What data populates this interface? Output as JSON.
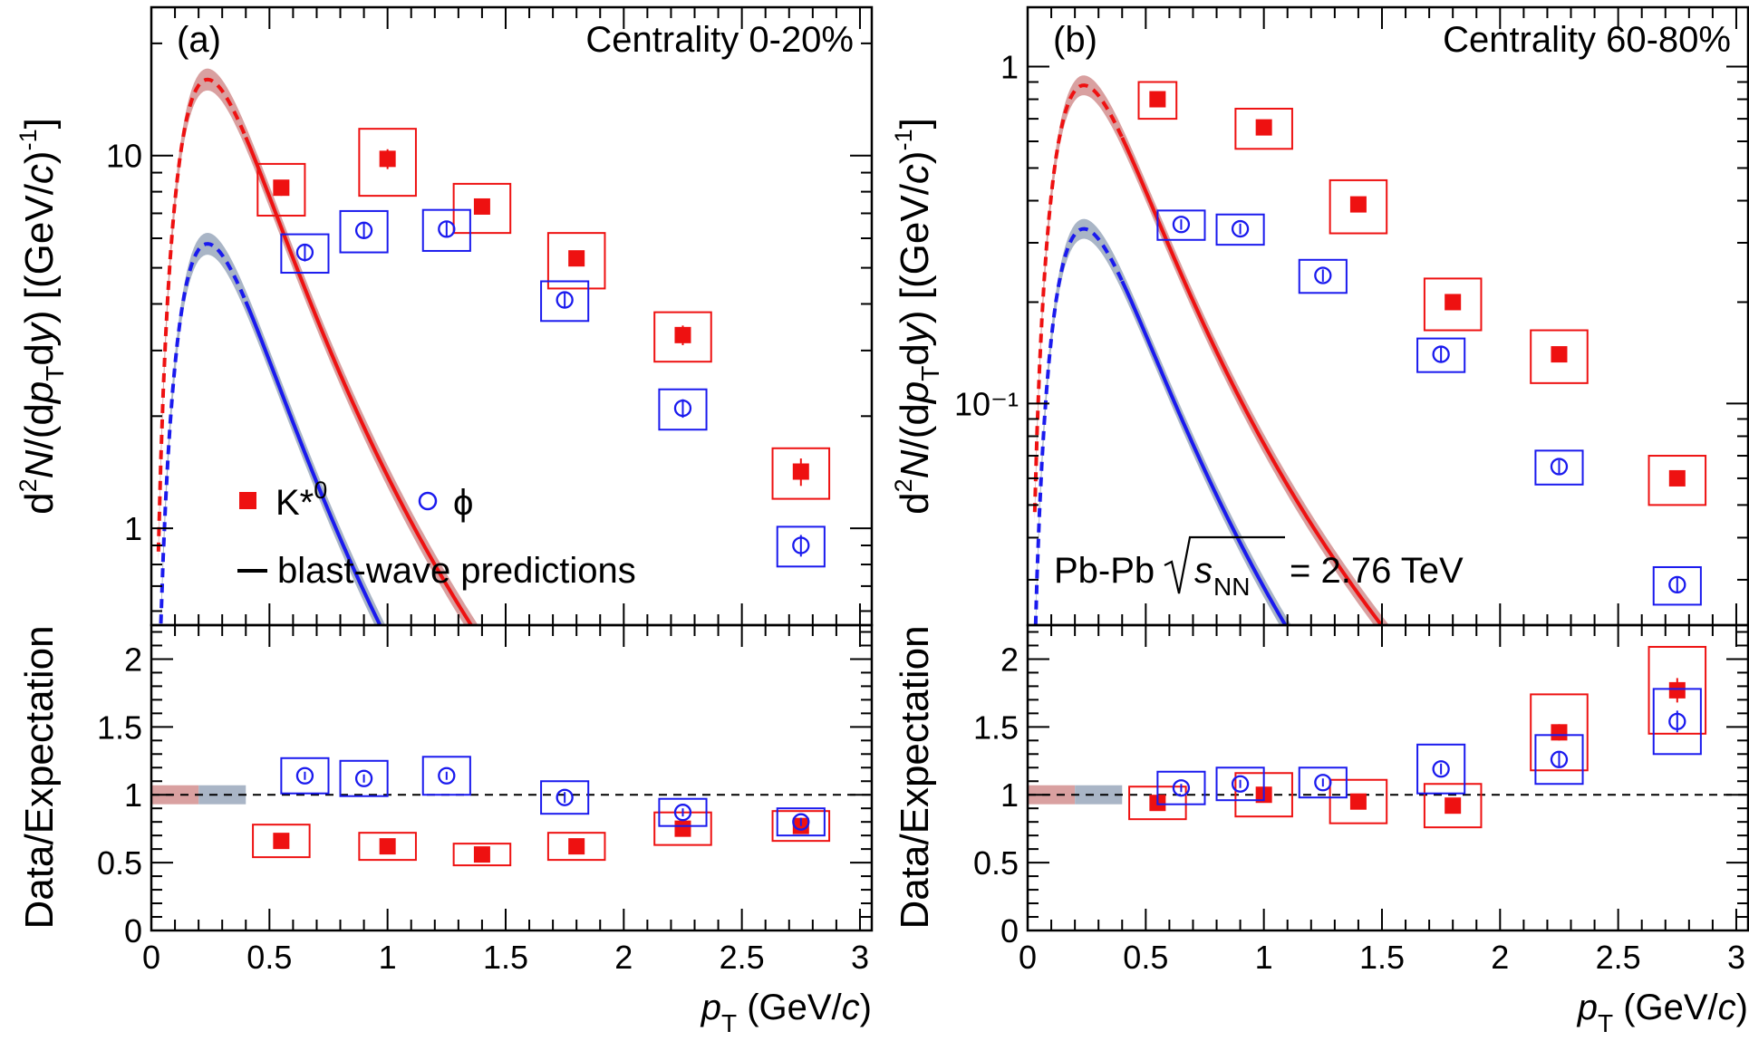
{
  "colors": {
    "kstar": "#ee1111",
    "phi": "#1a1aee",
    "kstar_band": "#d9a0a0",
    "phi_band": "#a9b5c6"
  },
  "legend": {
    "kstar_label": "K*",
    "kstar_sup": "0",
    "phi_label": "ϕ",
    "bw_label": "blast-wave predictions"
  },
  "axes": {
    "y_label_top": "d²N/(dp_T dy) [(GeV/c)⁻¹]",
    "y_label_bottom": "Data/Expectation",
    "x_label": "p_T (GeV/c)"
  },
  "system_label": {
    "prefix": "Pb-Pb",
    "s": "s",
    "nn": "NN",
    "suffix": "= 2.76 TeV"
  },
  "chart_data": [
    {
      "type": "scatter",
      "panel": "a-top",
      "tag": "(a)",
      "title": "Centrality 0-20%",
      "xlabel": "p_T (GeV/c)",
      "ylabel": "d²N/(dp_T dy) [(GeV/c)⁻¹]",
      "yscale": "log",
      "xlim": [
        0,
        3.05
      ],
      "ylim": [
        0.55,
        25
      ],
      "x_ticks": [
        "0",
        "0.5",
        "1",
        "1.5",
        "2",
        "2.5",
        "3"
      ],
      "y_tick_values": [
        1,
        10
      ],
      "y_tick_labels": [
        "1",
        "10"
      ],
      "series": [
        {
          "name": "K*0",
          "marker": "filled-square",
          "color": "#ee1111",
          "points": [
            {
              "x": 0.55,
              "y": 8.2,
              "err": 0.4,
              "sys": 1.3,
              "half_width": 0.1
            },
            {
              "x": 1.0,
              "y": 9.8,
              "err": 0.6,
              "sys": 2.0,
              "half_width": 0.12
            },
            {
              "x": 1.4,
              "y": 7.3,
              "err": 0.3,
              "sys": 1.1,
              "half_width": 0.12
            },
            {
              "x": 1.8,
              "y": 5.3,
              "err": 0.25,
              "sys": 0.9,
              "half_width": 0.12
            },
            {
              "x": 2.25,
              "y": 3.3,
              "err": 0.2,
              "sys": 0.5,
              "half_width": 0.12
            },
            {
              "x": 2.75,
              "y": 1.42,
              "err": 0.12,
              "sys": 0.22,
              "half_width": 0.12
            }
          ]
        },
        {
          "name": "phi",
          "marker": "open-circle",
          "color": "#1a1aee",
          "points": [
            {
              "x": 0.65,
              "y": 5.5,
              "err": 0.3,
              "sys": 0.65,
              "half_width": 0.1
            },
            {
              "x": 0.9,
              "y": 6.3,
              "err": 0.3,
              "sys": 0.8,
              "half_width": 0.1
            },
            {
              "x": 1.25,
              "y": 6.35,
              "err": 0.3,
              "sys": 0.8,
              "half_width": 0.1
            },
            {
              "x": 1.75,
              "y": 4.1,
              "err": 0.2,
              "sys": 0.5,
              "half_width": 0.1
            },
            {
              "x": 2.25,
              "y": 2.1,
              "err": 0.12,
              "sys": 0.26,
              "half_width": 0.1
            },
            {
              "x": 2.75,
              "y": 0.9,
              "err": 0.06,
              "sys": 0.11,
              "half_width": 0.1
            }
          ]
        }
      ],
      "blast_wave": {
        "kstar_peak": 16.0,
        "phi_peak": 5.8,
        "dashed_below_pt": 0.4
      }
    },
    {
      "type": "scatter",
      "panel": "a-bottom",
      "xlabel": "p_T (GeV/c)",
      "ylabel": "Data/Expectation",
      "xlim": [
        0,
        3.05
      ],
      "ylim": [
        0,
        2.25
      ],
      "x_ticks": [
        "0",
        "0.5",
        "1",
        "1.5",
        "2",
        "2.5",
        "3"
      ],
      "y_tick_values": [
        0,
        0.5,
        1,
        1.5,
        2
      ],
      "y_tick_labels": [
        "0",
        "0.5",
        "1",
        "1.5",
        "2"
      ],
      "reference_line": 1,
      "norm_boxes": [
        {
          "color": "#d9a0a0",
          "x0": 0.0,
          "x1": 0.2,
          "half_height": 0.07
        },
        {
          "color": "#a9b5c6",
          "x0": 0.2,
          "x1": 0.4,
          "half_height": 0.07
        }
      ],
      "series": [
        {
          "name": "K*0",
          "marker": "filled-square",
          "color": "#ee1111",
          "points": [
            {
              "x": 0.55,
              "y": 0.66,
              "err": 0.02,
              "sys": 0.12,
              "half_width": 0.12
            },
            {
              "x": 1.0,
              "y": 0.62,
              "err": 0.03,
              "sys": 0.1,
              "half_width": 0.12
            },
            {
              "x": 1.4,
              "y": 0.56,
              "err": 0.02,
              "sys": 0.08,
              "half_width": 0.12
            },
            {
              "x": 1.8,
              "y": 0.62,
              "err": 0.02,
              "sys": 0.1,
              "half_width": 0.12
            },
            {
              "x": 2.25,
              "y": 0.75,
              "err": 0.02,
              "sys": 0.12,
              "half_width": 0.12
            },
            {
              "x": 2.75,
              "y": 0.77,
              "err": 0.04,
              "sys": 0.11,
              "half_width": 0.12
            }
          ]
        },
        {
          "name": "phi",
          "marker": "open-circle",
          "color": "#1a1aee",
          "points": [
            {
              "x": 0.65,
              "y": 1.14,
              "err": 0.03,
              "sys": 0.13,
              "half_width": 0.1
            },
            {
              "x": 0.9,
              "y": 1.12,
              "err": 0.03,
              "sys": 0.13,
              "half_width": 0.1
            },
            {
              "x": 1.25,
              "y": 1.14,
              "err": 0.03,
              "sys": 0.14,
              "half_width": 0.1
            },
            {
              "x": 1.75,
              "y": 0.98,
              "err": 0.04,
              "sys": 0.12,
              "half_width": 0.1
            },
            {
              "x": 2.25,
              "y": 0.87,
              "err": 0.03,
              "sys": 0.1,
              "half_width": 0.1
            },
            {
              "x": 2.75,
              "y": 0.8,
              "err": 0.03,
              "sys": 0.1,
              "half_width": 0.1
            }
          ]
        }
      ]
    },
    {
      "type": "scatter",
      "panel": "b-top",
      "tag": "(b)",
      "title": "Centrality 60-80%",
      "xlabel": "p_T (GeV/c)",
      "ylabel": "d²N/(dp_T dy) [(GeV/c)⁻¹]",
      "yscale": "log",
      "xlim": [
        0,
        3.05
      ],
      "ylim": [
        0.022,
        1.5
      ],
      "x_ticks": [
        "0",
        "0.5",
        "1",
        "1.5",
        "2",
        "2.5",
        "3"
      ],
      "y_tick_values": [
        0.1,
        1
      ],
      "y_tick_labels": [
        "10⁻¹",
        "1"
      ],
      "series": [
        {
          "name": "K*0",
          "marker": "filled-square",
          "color": "#ee1111",
          "points": [
            {
              "x": 0.55,
              "y": 0.8,
              "err": 0.04,
              "sys": 0.1,
              "half_width": 0.08
            },
            {
              "x": 1.0,
              "y": 0.66,
              "err": 0.03,
              "sys": 0.09,
              "half_width": 0.12
            },
            {
              "x": 1.4,
              "y": 0.39,
              "err": 0.02,
              "sys": 0.07,
              "half_width": 0.12
            },
            {
              "x": 1.8,
              "y": 0.2,
              "err": 0.01,
              "sys": 0.035,
              "half_width": 0.12
            },
            {
              "x": 2.25,
              "y": 0.14,
              "err": 0.007,
              "sys": 0.025,
              "half_width": 0.12
            },
            {
              "x": 2.75,
              "y": 0.06,
              "err": 0.003,
              "sys": 0.01,
              "half_width": 0.12
            }
          ]
        },
        {
          "name": "phi",
          "marker": "open-circle",
          "color": "#1a1aee",
          "points": [
            {
              "x": 0.65,
              "y": 0.34,
              "err": 0.012,
              "sys": 0.034,
              "half_width": 0.1
            },
            {
              "x": 0.9,
              "y": 0.33,
              "err": 0.012,
              "sys": 0.034,
              "half_width": 0.1
            },
            {
              "x": 1.25,
              "y": 0.24,
              "err": 0.01,
              "sys": 0.027,
              "half_width": 0.1
            },
            {
              "x": 1.75,
              "y": 0.14,
              "err": 0.007,
              "sys": 0.016,
              "half_width": 0.1
            },
            {
              "x": 2.25,
              "y": 0.065,
              "err": 0.003,
              "sys": 0.0075,
              "half_width": 0.1
            },
            {
              "x": 2.75,
              "y": 0.029,
              "err": 0.0015,
              "sys": 0.0037,
              "half_width": 0.1
            }
          ]
        }
      ],
      "blast_wave": {
        "kstar_peak": 0.88,
        "phi_peak": 0.33,
        "dashed_below_pt": 0.4
      }
    },
    {
      "type": "scatter",
      "panel": "b-bottom",
      "xlabel": "p_T (GeV/c)",
      "ylabel": "Data/Expectation",
      "xlim": [
        0,
        3.05
      ],
      "ylim": [
        0,
        2.25
      ],
      "x_ticks": [
        "0",
        "0.5",
        "1",
        "1.5",
        "2",
        "2.5",
        "3"
      ],
      "y_tick_values": [
        0,
        0.5,
        1,
        1.5,
        2
      ],
      "y_tick_labels": [
        "0",
        "0.5",
        "1",
        "1.5",
        "2"
      ],
      "reference_line": 1,
      "norm_boxes": [
        {
          "color": "#d9a0a0",
          "x0": 0.0,
          "x1": 0.2,
          "half_height": 0.07
        },
        {
          "color": "#a9b5c6",
          "x0": 0.2,
          "x1": 0.4,
          "half_height": 0.07
        }
      ],
      "series": [
        {
          "name": "K*0",
          "marker": "filled-square",
          "color": "#ee1111",
          "points": [
            {
              "x": 0.55,
              "y": 0.94,
              "err": 0.03,
              "sys": 0.12,
              "half_width": 0.12
            },
            {
              "x": 1.0,
              "y": 1.0,
              "err": 0.04,
              "sys": 0.16,
              "half_width": 0.12
            },
            {
              "x": 1.4,
              "y": 0.95,
              "err": 0.04,
              "sys": 0.16,
              "half_width": 0.12
            },
            {
              "x": 1.8,
              "y": 0.92,
              "err": 0.04,
              "sys": 0.16,
              "half_width": 0.12
            },
            {
              "x": 2.25,
              "y": 1.46,
              "err": 0.06,
              "sys": 0.28,
              "half_width": 0.12
            },
            {
              "x": 2.75,
              "y": 1.77,
              "err": 0.09,
              "sys": 0.32,
              "half_width": 0.12
            }
          ]
        },
        {
          "name": "phi",
          "marker": "open-circle",
          "color": "#1a1aee",
          "points": [
            {
              "x": 0.65,
              "y": 1.05,
              "err": 0.03,
              "sys": 0.12,
              "half_width": 0.1
            },
            {
              "x": 0.9,
              "y": 1.08,
              "err": 0.03,
              "sys": 0.12,
              "half_width": 0.1
            },
            {
              "x": 1.25,
              "y": 1.09,
              "err": 0.03,
              "sys": 0.11,
              "half_width": 0.1
            },
            {
              "x": 1.75,
              "y": 1.19,
              "err": 0.04,
              "sys": 0.18,
              "half_width": 0.1
            },
            {
              "x": 2.25,
              "y": 1.26,
              "err": 0.05,
              "sys": 0.18,
              "half_width": 0.1
            },
            {
              "x": 2.75,
              "y": 1.54,
              "err": 0.08,
              "sys": 0.24,
              "half_width": 0.1
            }
          ]
        }
      ]
    }
  ]
}
